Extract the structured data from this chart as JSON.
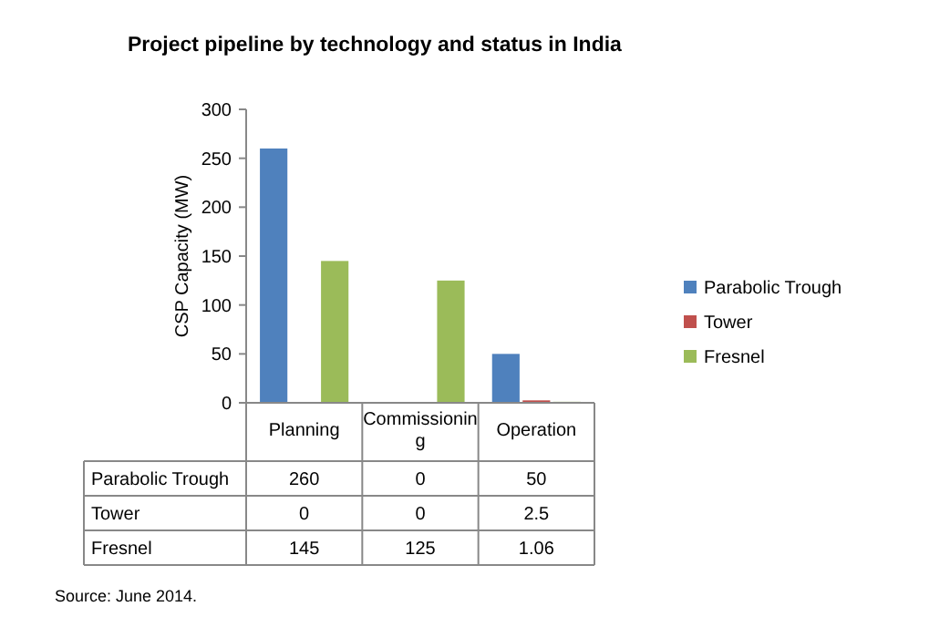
{
  "chart_data": {
    "type": "bar",
    "title": "Project pipeline by technology and status in India",
    "ylabel": "CSP Capacity (MW)",
    "categories": [
      "Planning",
      "Commissioning",
      "Operation"
    ],
    "series": [
      {
        "name": "Parabolic Trough",
        "color": "#4f81bd",
        "values": [
          260,
          0,
          50
        ]
      },
      {
        "name": "Tower",
        "color": "#c0504d",
        "values": [
          0,
          0,
          2.5
        ]
      },
      {
        "name": "Fresnel",
        "color": "#9bbb59",
        "values": [
          145,
          125,
          1.06
        ]
      }
    ],
    "ylim": [
      0,
      300
    ],
    "yticks": [
      0,
      50,
      100,
      150,
      200,
      250,
      300
    ],
    "legend": "right",
    "data_labels": true,
    "annotations": [
      "Source: June 2014."
    ]
  }
}
